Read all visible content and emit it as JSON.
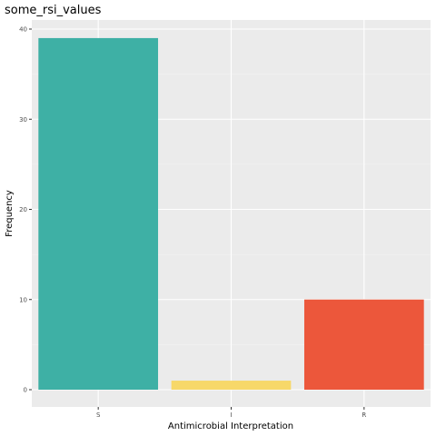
{
  "chart_data": {
    "type": "bar",
    "title": "some_rsi_values",
    "xlabel": "Antimicrobial Interpretation",
    "ylabel": "Frequency",
    "categories": [
      "S",
      "I",
      "R"
    ],
    "values": [
      39,
      1,
      10
    ],
    "colors": [
      "#3eb0a5",
      "#f7d869",
      "#ec573b"
    ],
    "ylim": [
      0,
      41
    ],
    "yticks": [
      0,
      10,
      20,
      30,
      40
    ],
    "grid": true,
    "panel_background": "#ebebeb",
    "legend": "none"
  }
}
